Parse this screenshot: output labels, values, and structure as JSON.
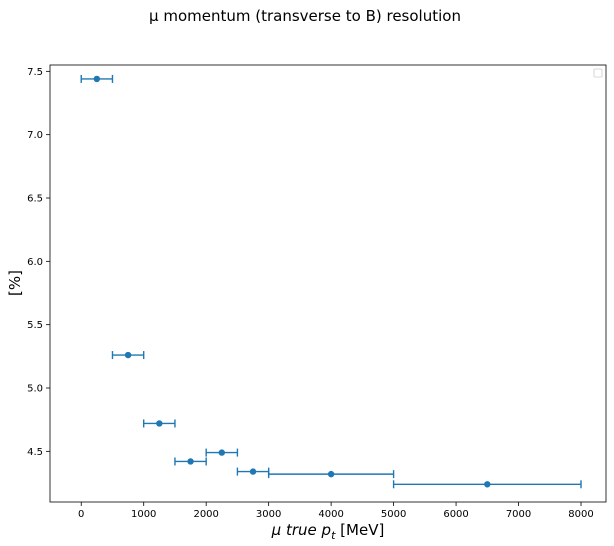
{
  "chart_data": {
    "type": "scatter",
    "title": "μ momentum (transverse to B) resolution",
    "xlabel": "μ true p_t [MeV]",
    "xlabel_parts": {
      "prefix": "μ true ",
      "var": "p",
      "sub": "t",
      "suffix": " [MeV]"
    },
    "ylabel": "[%]",
    "xlim": [
      -500,
      8400
    ],
    "ylim": [
      4.1,
      7.55
    ],
    "xticks": [
      0,
      1000,
      2000,
      3000,
      4000,
      5000,
      6000,
      7000,
      8000
    ],
    "xtick_labels": [
      "0",
      "1000",
      "2000",
      "3000",
      "4000",
      "5000",
      "6000",
      "7000",
      "8000"
    ],
    "yticks": [
      4.5,
      5.0,
      5.5,
      6.0,
      6.5,
      7.0,
      7.5
    ],
    "ytick_labels": [
      "4.5",
      "5.0",
      "5.5",
      "6.0",
      "6.5",
      "7.0",
      "7.5"
    ],
    "legend": "top-right",
    "grid": false,
    "color": "#1f77b4",
    "series": [
      {
        "x": [
          250,
          750,
          1250,
          1750,
          2250,
          2750,
          4000,
          6500
        ],
        "y": [
          7.44,
          5.26,
          4.72,
          4.42,
          4.49,
          4.34,
          4.32,
          4.24
        ],
        "xerr": [
          250,
          250,
          250,
          250,
          250,
          250,
          1000,
          1500
        ]
      }
    ]
  }
}
